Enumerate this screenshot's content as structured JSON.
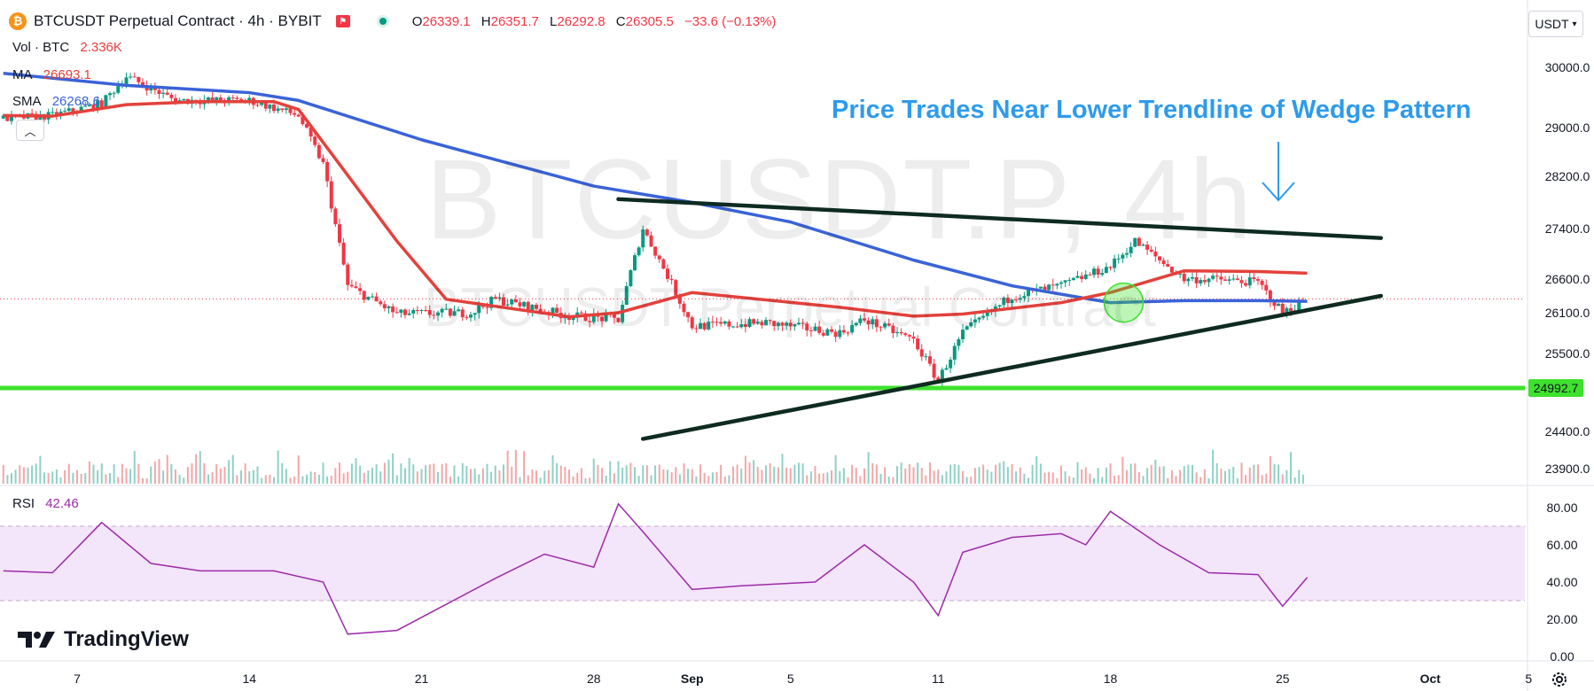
{
  "header": {
    "title": "BTCUSDT Perpetual Contract · 4h · BYBIT",
    "ohlc": [
      {
        "key": "O",
        "value": "26339.1"
      },
      {
        "key": "H",
        "value": "26351.7"
      },
      {
        "key": "L",
        "value": "26292.8"
      },
      {
        "key": "C",
        "value": "26305.5"
      }
    ],
    "change": "−33.6 (−0.13%)",
    "currency": "USDT"
  },
  "indicators": {
    "vol_label": "Vol · BTC",
    "vol_value": "2.336K",
    "ma_label": "MA",
    "ma_value": "26693.1",
    "sma_label": "SMA",
    "sma_value": "26268.6",
    "rsi_label": "RSI",
    "rsi_value": "42.46"
  },
  "watermark": {
    "symbol": "BTCUSDT.P, 4h",
    "name": "BTCUSDT Perpetual Contract"
  },
  "annotation": "Price Trades Near Lower Trendline of Wedge Pattern",
  "brand": "TradingView",
  "colors": {
    "ma": "#e4413b",
    "sma": "#3a63d8",
    "support": "#3ee12e",
    "trendline": "#0e2b20",
    "annotation": "#2e9bec",
    "rsi": "#9c2ba8",
    "rsi_band": "#f3e5fa"
  },
  "chart_data": {
    "type": "candlestick",
    "x_ticks": [
      "7",
      "14",
      "21",
      "28",
      "Sep",
      "5",
      "11",
      "18",
      "25",
      "Oct",
      "5"
    ],
    "x_tick_dates": [
      "2023-08-07",
      "2023-08-14",
      "2023-08-21",
      "2023-08-28",
      "2023-09-01",
      "2023-09-05",
      "2023-09-11",
      "2023-09-18",
      "2023-09-25",
      "2023-10-01",
      "2023-10-05"
    ],
    "y_ticks": [
      "30000.0",
      "29000.0",
      "28200.0",
      "27400.0",
      "26600.0",
      "26100.0",
      "25500.0",
      "24400.0",
      "23900.0"
    ],
    "y_tick_values": [
      30000,
      29000,
      28200,
      27400,
      26600,
      26100,
      25500,
      24400,
      23900
    ],
    "current_price": "26305.5",
    "current_price_value": 26305.5,
    "support_level": "24992.7",
    "support_level_value": 24992.7,
    "price_series": {
      "x": [
        "2023-08-04",
        "2023-08-06",
        "2023-08-08",
        "2023-08-09",
        "2023-08-11",
        "2023-08-14",
        "2023-08-16",
        "2023-08-17",
        "2023-08-18",
        "2023-08-20",
        "2023-08-23",
        "2023-08-24",
        "2023-08-27",
        "2023-08-29",
        "2023-08-30",
        "2023-09-01",
        "2023-09-04",
        "2023-09-07",
        "2023-09-08",
        "2023-09-10",
        "2023-09-11",
        "2023-09-12",
        "2023-09-14",
        "2023-09-16",
        "2023-09-18",
        "2023-09-19",
        "2023-09-21",
        "2023-09-22",
        "2023-09-24",
        "2023-09-25",
        "2023-09-26"
      ],
      "close": [
        29150,
        29200,
        29400,
        29850,
        29450,
        29450,
        29200,
        28400,
        26500,
        26080,
        26100,
        26300,
        26050,
        26000,
        27400,
        25900,
        25950,
        25800,
        26000,
        25700,
        25100,
        25800,
        26350,
        26500,
        26800,
        27200,
        26600,
        26600,
        26550,
        26100,
        26305.5
      ]
    },
    "ma_series": {
      "x": [
        "2023-08-04",
        "2023-08-06",
        "2023-08-09",
        "2023-08-12",
        "2023-08-15",
        "2023-08-16",
        "2023-08-20",
        "2023-08-22",
        "2023-08-27",
        "2023-08-29",
        "2023-09-01",
        "2023-09-07",
        "2023-09-10",
        "2023-09-12",
        "2023-09-16",
        "2023-09-18",
        "2023-09-21",
        "2023-09-24",
        "2023-09-26"
      ],
      "y": [
        29200,
        29190,
        29380,
        29430,
        29430,
        29300,
        27200,
        26300,
        26040,
        26100,
        26400,
        26180,
        26050,
        26080,
        26250,
        26400,
        26730,
        26720,
        26693.1
      ]
    },
    "sma_series": {
      "x": [
        "2023-08-04",
        "2023-08-09",
        "2023-08-14",
        "2023-08-16",
        "2023-08-21",
        "2023-08-28",
        "2023-09-01",
        "2023-09-05",
        "2023-09-10",
        "2023-09-14",
        "2023-09-18",
        "2023-09-21",
        "2023-09-24",
        "2023-09-26"
      ],
      "y": [
        29900,
        29700,
        29580,
        29450,
        28800,
        28050,
        27800,
        27500,
        26900,
        26500,
        26250,
        26280,
        26280,
        26268.6
      ]
    },
    "trendlines": [
      {
        "x": [
          "2023-08-29",
          "2023-09-29"
        ],
        "y": [
          27850,
          27250
        ]
      },
      {
        "x": [
          "2023-08-30",
          "2023-09-29"
        ],
        "y": [
          24300,
          26350
        ]
      }
    ],
    "rsi": {
      "y_ticks": [
        "80.00",
        "60.00",
        "40.00",
        "20.00",
        "0.00"
      ],
      "y_tick_values": [
        80,
        60,
        40,
        20,
        0
      ],
      "band": [
        30,
        70
      ],
      "x": [
        "2023-08-04",
        "2023-08-06",
        "2023-08-08",
        "2023-08-10",
        "2023-08-12",
        "2023-08-15",
        "2023-08-17",
        "2023-08-18",
        "2023-08-20",
        "2023-08-22",
        "2023-08-24",
        "2023-08-26",
        "2023-08-28",
        "2023-08-29",
        "2023-08-30",
        "2023-09-01",
        "2023-09-03",
        "2023-09-06",
        "2023-09-08",
        "2023-09-10",
        "2023-09-11",
        "2023-09-12",
        "2023-09-14",
        "2023-09-16",
        "2023-09-17",
        "2023-09-18",
        "2023-09-20",
        "2023-09-22",
        "2023-09-24",
        "2023-09-25",
        "2023-09-26"
      ],
      "y": [
        46,
        45,
        72,
        50,
        46,
        46,
        40,
        12,
        14,
        28,
        42,
        55,
        48,
        82,
        67,
        36,
        38,
        40,
        60,
        40,
        22,
        56,
        64,
        66,
        60,
        78,
        60,
        45,
        44,
        27,
        42.46
      ]
    }
  }
}
